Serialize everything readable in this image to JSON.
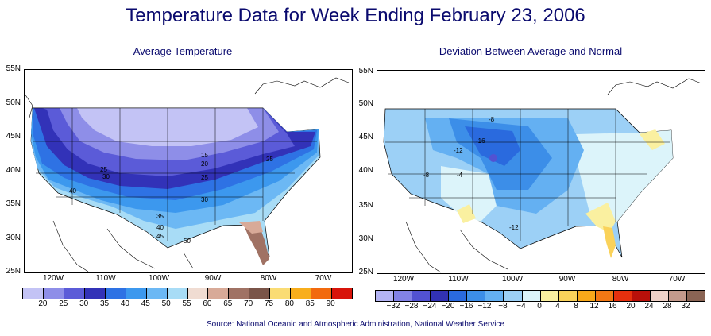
{
  "title": "Temperature Data for Week Ending February 23, 2006",
  "source": "Source:  National Oceanic and Atmospheric Administration, National Weather Service",
  "maps": [
    {
      "title": "Average Temperature",
      "lat_labels": [
        "55N",
        "50N",
        "45N",
        "40N",
        "35N",
        "30N",
        "25N"
      ],
      "lon_labels": [
        "120W",
        "110W",
        "100W",
        "90W",
        "80W",
        "70W"
      ],
      "contour_labels": [
        "15",
        "20",
        "25",
        "25",
        "30",
        "25",
        "40",
        "30",
        "35",
        "40",
        "45",
        "50"
      ],
      "legend": {
        "labels": [
          "20",
          "25",
          "30",
          "35",
          "40",
          "45",
          "50",
          "55",
          "60",
          "65",
          "70",
          "75",
          "80",
          "85",
          "90"
        ],
        "colors": [
          "#c3c3f5",
          "#8e8ee8",
          "#5b5bd8",
          "#3232b8",
          "#2e72e4",
          "#3c98ee",
          "#6cb8f4",
          "#a8dcf6",
          "#f0dcd2",
          "#d8aa98",
          "#a07264",
          "#7a5448",
          "#fadc74",
          "#f8ae1c",
          "#f26a0e",
          "#d8140a"
        ]
      }
    },
    {
      "title": "Deviation Between Average and Normal",
      "lat_labels": [
        "55N",
        "50N",
        "45N",
        "40N",
        "35N",
        "30N",
        "25N"
      ],
      "lon_labels": [
        "120W",
        "110W",
        "100W",
        "90W",
        "80W",
        "70W"
      ],
      "contour_labels": [
        "-8",
        "-16",
        "-12",
        "-8",
        "-4",
        "-12"
      ],
      "legend": {
        "labels": [
          "−32",
          "−28",
          "−24",
          "−20",
          "−16",
          "−12",
          "−8",
          "−4",
          "0",
          "4",
          "8",
          "12",
          "16",
          "20",
          "24",
          "28",
          "32"
        ],
        "colors": [
          "#b4b4f4",
          "#8282e6",
          "#5252d2",
          "#3232b4",
          "#2a6ade",
          "#3c8ee8",
          "#64b0f2",
          "#9cd0f6",
          "#dcf4fa",
          "#faf0a0",
          "#fad25a",
          "#f8a81a",
          "#f27814",
          "#e6300e",
          "#b8100a",
          "#efd2c8",
          "#c49a8c",
          "#8a6454"
        ]
      }
    }
  ]
}
